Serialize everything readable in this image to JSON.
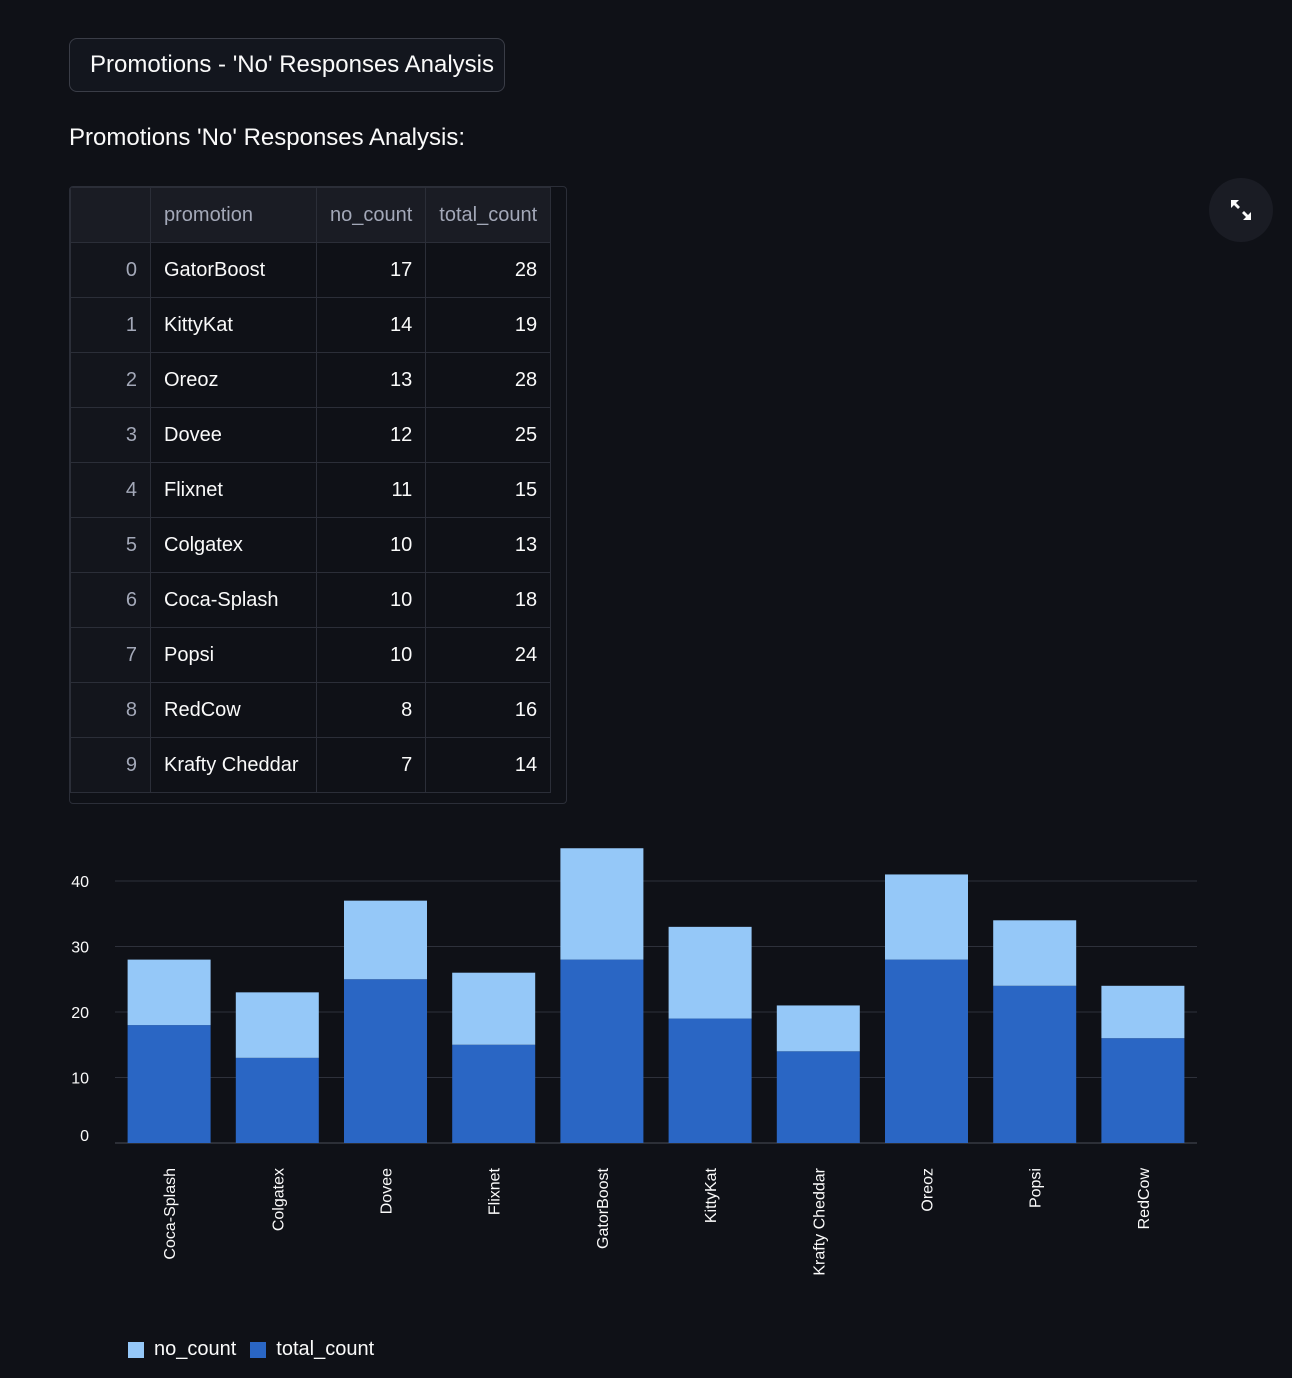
{
  "header": {
    "button_label": "Promotions - 'No' Responses Analysis"
  },
  "section": {
    "subtitle": "Promotions 'No' Responses Analysis:"
  },
  "table": {
    "columns": [
      "",
      "promotion",
      "no_count",
      "total_count"
    ],
    "rows": [
      [
        "0",
        "GatorBoost",
        "17",
        "28"
      ],
      [
        "1",
        "KittyKat",
        "14",
        "19"
      ],
      [
        "2",
        "Oreoz",
        "13",
        "28"
      ],
      [
        "3",
        "Dovee",
        "12",
        "25"
      ],
      [
        "4",
        "Flixnet",
        "11",
        "15"
      ],
      [
        "5",
        "Colgatex",
        "10",
        "13"
      ],
      [
        "6",
        "Coca-Splash",
        "10",
        "18"
      ],
      [
        "7",
        "Popsi",
        "10",
        "24"
      ],
      [
        "8",
        "RedCow",
        "8",
        "16"
      ],
      [
        "9",
        "Krafty Cheddar",
        "7",
        "14"
      ]
    ]
  },
  "toolbar": {
    "expand_icon": "fullscreen-icon"
  },
  "colors": {
    "no_count": "#95c8f8",
    "total_count": "#2a66c4",
    "grid": "#2e313b",
    "axis_text": "#fafafa"
  },
  "chart_data": {
    "type": "bar",
    "stacked": true,
    "categories": [
      "Coca-Splash",
      "Colgatex",
      "Dovee",
      "Flixnet",
      "GatorBoost",
      "KittyKat",
      "Krafty Cheddar",
      "Oreoz",
      "Popsi",
      "RedCow"
    ],
    "series": [
      {
        "name": "total_count",
        "values": [
          18,
          13,
          25,
          15,
          28,
          19,
          14,
          28,
          24,
          16
        ]
      },
      {
        "name": "no_count",
        "values": [
          10,
          10,
          12,
          11,
          17,
          14,
          7,
          13,
          10,
          8
        ]
      }
    ],
    "yticks": [
      0,
      10,
      20,
      30,
      40
    ],
    "ylim": [
      0,
      45
    ],
    "legend": [
      "no_count",
      "total_count"
    ],
    "legend_position": "bottom-left",
    "grid": true
  }
}
